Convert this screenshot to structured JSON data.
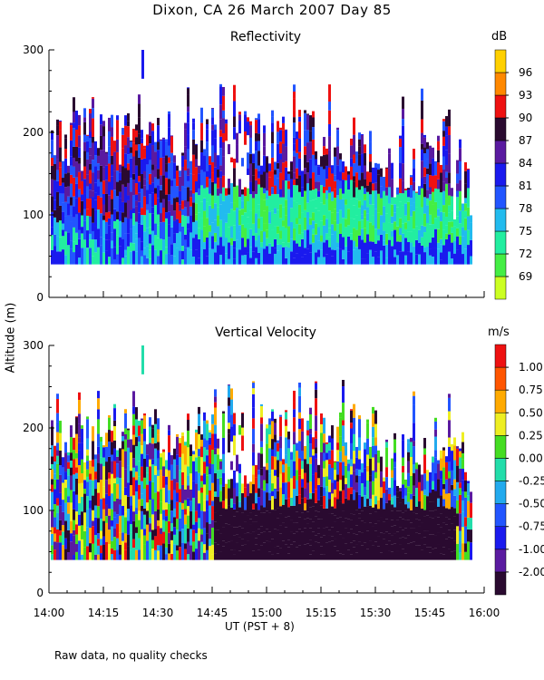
{
  "title": "Dixon, CA 26 March 2007  Day  85",
  "xlabel": "UT  (PST + 8)",
  "ylabel": "Altitude (m)",
  "footnote": "Raw data, no quality checks",
  "chart_data": [
    {
      "type": "heatmap",
      "title": "Reflectivity",
      "ylabel": "Altitude (m)",
      "xlabel": "UT  (PST + 8)",
      "x_ticks": [
        "14:00",
        "14:15",
        "14:30",
        "14:45",
        "15:00",
        "15:15",
        "15:30",
        "15:45",
        "16:00"
      ],
      "y_ticks": [
        0,
        100,
        200,
        300
      ],
      "ylim": [
        0,
        300
      ],
      "colorbar": {
        "unit": "dB",
        "levels": [
          69,
          72,
          75,
          78,
          81,
          84,
          87,
          90,
          93,
          96
        ],
        "labels": [
          "69",
          "72",
          "75",
          "78",
          "81",
          "84",
          "87",
          "90",
          "93",
          "96"
        ],
        "colors": [
          "#ccff22",
          "#44ee44",
          "#22eea0",
          "#22bbee",
          "#2255ff",
          "#1a1aee",
          "#5a1aa0",
          "#2a0a30",
          "#ee1111",
          "#ff8800",
          "#ffd000"
        ]
      }
    },
    {
      "type": "heatmap",
      "title": "Vertical Velocity",
      "ylabel": "Altitude (m)",
      "xlabel": "UT  (PST + 8)",
      "x_ticks": [
        "14:00",
        "14:15",
        "14:30",
        "14:45",
        "15:00",
        "15:15",
        "15:30",
        "15:45",
        "16:00"
      ],
      "y_ticks": [
        0,
        100,
        200,
        300
      ],
      "ylim": [
        0,
        300
      ],
      "colorbar": {
        "unit": "m/s",
        "levels": [
          -2.0,
          -1.0,
          -0.75,
          -0.5,
          -0.25,
          0.0,
          0.25,
          0.5,
          0.75,
          1.0
        ],
        "labels": [
          "-2.00",
          "-1.00",
          "-0.75",
          "-0.50",
          "-0.25",
          "0.00",
          "0.25",
          "0.50",
          "0.75",
          "1.00"
        ],
        "colors": [
          "#2a0a30",
          "#5a1aa0",
          "#1a1aee",
          "#2255ff",
          "#22aaee",
          "#22ddaa",
          "#44dd22",
          "#eeee22",
          "#ffaa00",
          "#ff5500",
          "#ee1111"
        ]
      }
    }
  ]
}
